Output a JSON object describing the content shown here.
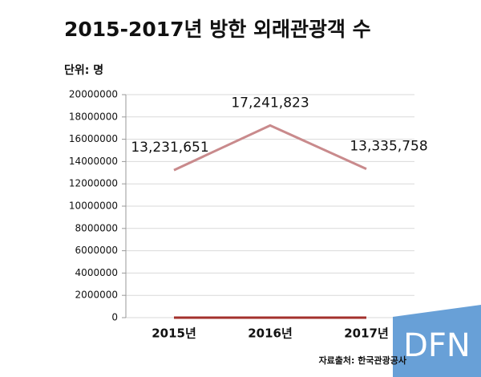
{
  "chart_data": {
    "type": "line",
    "title": "2015-2017년 방한 외래관광객 수",
    "subtitle": "단위: 명",
    "source": "자료출처: 한국관광공사",
    "watermark": "DFN",
    "categories": [
      "2015년",
      "2016년",
      "2017년"
    ],
    "series": [
      {
        "color": "#c98a8c",
        "values": [
          13231651,
          17241823,
          13335758
        ],
        "value_labels": [
          "13,231,651",
          "17,241,823",
          "13,335,758"
        ]
      },
      {
        "color": "#a3312c",
        "values": [
          0,
          0,
          0
        ]
      }
    ],
    "ylim": [
      0,
      20000000
    ],
    "yticks": [
      0,
      2000000,
      4000000,
      6000000,
      8000000,
      10000000,
      12000000,
      14000000,
      16000000,
      18000000,
      20000000
    ],
    "grid": true
  }
}
